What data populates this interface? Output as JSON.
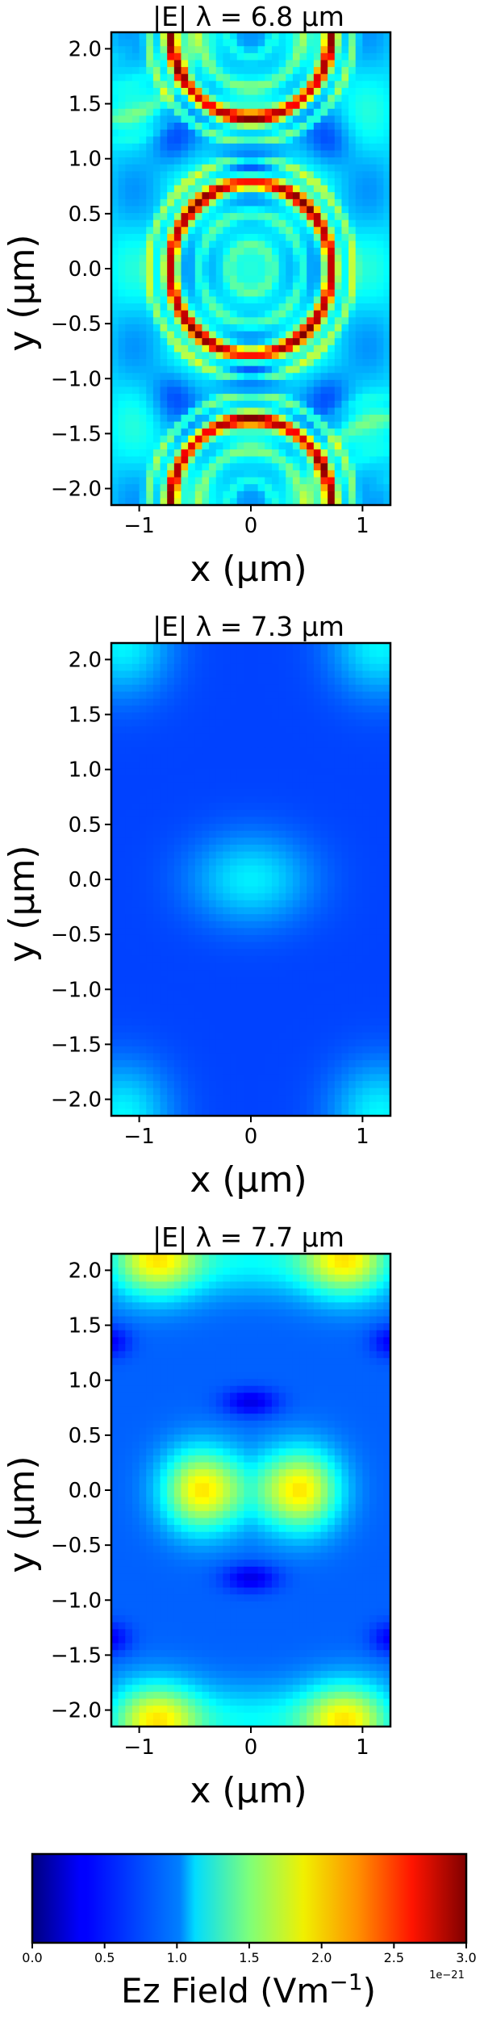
{
  "chart_data": [
    {
      "type": "heatmap",
      "title": "|E| λ = 6.8 μm",
      "xlabel": "x (μm)",
      "ylabel": "y (μm)",
      "xlim": [
        -1.25,
        1.25
      ],
      "ylim": [
        -2.15,
        2.15
      ],
      "xticks": [
        -1,
        0,
        1
      ],
      "xtick_labels": [
        "−1",
        "0",
        "1"
      ],
      "yticks": [
        2.0,
        1.5,
        1.0,
        0.5,
        0.0,
        -0.5,
        -1.0,
        -1.5,
        -2.0
      ],
      "ytick_labels": [
        "2.0",
        "1.5",
        "1.0",
        "0.5",
        "0.0",
        "−0.5",
        "−1.0",
        "−1.5",
        "−2.0"
      ],
      "pattern": "concentric_rings",
      "field_scale": 1.0
    },
    {
      "type": "heatmap",
      "title": "|E| λ = 7.3 μm",
      "xlabel": "x (μm)",
      "ylabel": "y (μm)",
      "xlim": [
        -1.25,
        1.25
      ],
      "ylim": [
        -2.15,
        2.15
      ],
      "xticks": [
        -1,
        0,
        1
      ],
      "xtick_labels": [
        "−1",
        "0",
        "1"
      ],
      "yticks": [
        2.0,
        1.5,
        1.0,
        0.5,
        0.0,
        -0.5,
        -1.0,
        -1.5,
        -2.0
      ],
      "ytick_labels": [
        "2.0",
        "1.5",
        "1.0",
        "0.5",
        "0.0",
        "−0.5",
        "−1.0",
        "−1.5",
        "−2.0"
      ],
      "pattern": "central_blob",
      "field_scale": 0.5
    },
    {
      "type": "heatmap",
      "title": "|E| λ = 7.7 μm",
      "xlabel": "x (μm)",
      "ylabel": "y (μm)",
      "xlim": [
        -1.25,
        1.25
      ],
      "ylim": [
        -2.15,
        2.15
      ],
      "xticks": [
        -1,
        0,
        1
      ],
      "xtick_labels": [
        "−1",
        "0",
        "1"
      ],
      "yticks": [
        2.0,
        1.5,
        1.0,
        0.5,
        0.0,
        -0.5,
        -1.0,
        -1.5,
        -2.0
      ],
      "ytick_labels": [
        "2.0",
        "1.5",
        "1.0",
        "0.5",
        "0.0",
        "−0.5",
        "−1.0",
        "−1.5",
        "−2.0"
      ],
      "pattern": "double_lobe",
      "field_scale": 1.0
    }
  ],
  "colorbar": {
    "colormap": "jet",
    "range": [
      0.0,
      3.0
    ],
    "ticks": [
      0.0,
      0.5,
      1.0,
      1.5,
      2.0,
      2.5,
      3.0
    ],
    "tick_labels": [
      "0.0",
      "0.5",
      "1.0",
      "1.5",
      "2.0",
      "2.5",
      "3.0"
    ],
    "offset_label": "1e−21",
    "label_main": "Ez  Field (Vm",
    "label_exp": "−1",
    "label_close": ")"
  }
}
